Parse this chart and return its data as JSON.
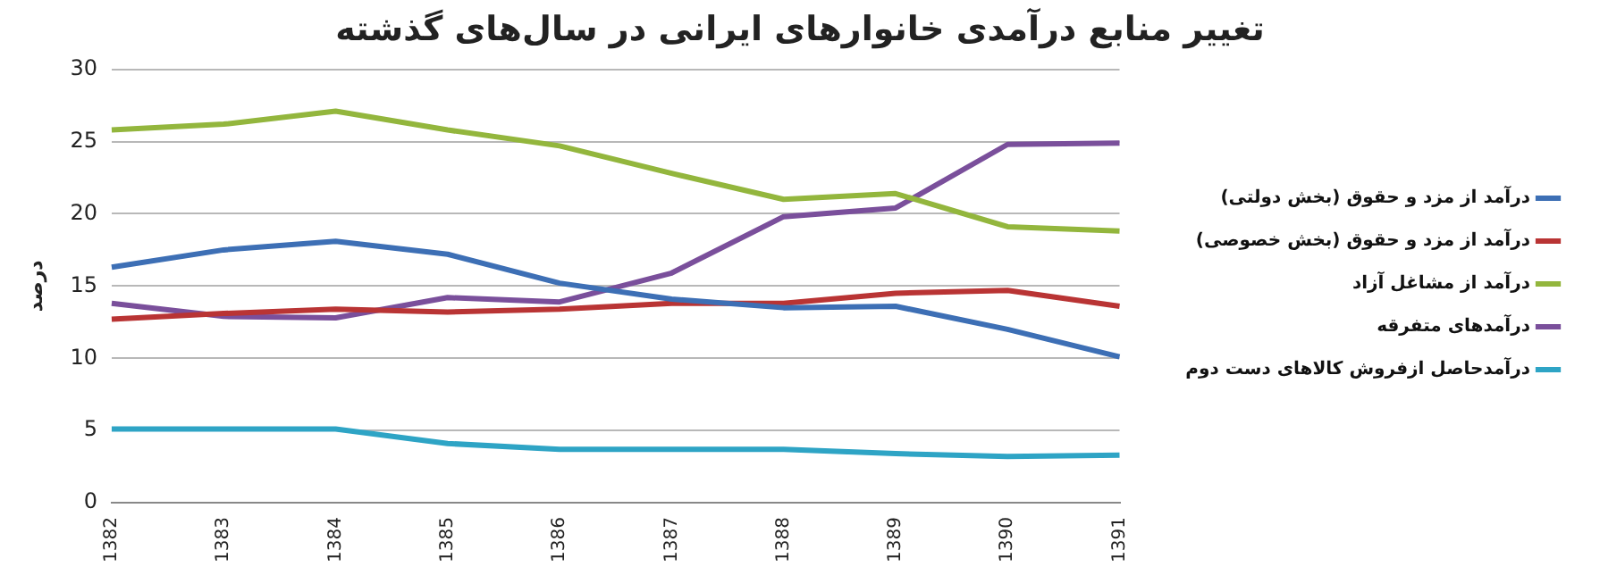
{
  "chart_data": {
    "type": "line",
    "title": "تغییر منابع درآمدی خانوارهای ایرانی در سال‌های گذشته",
    "ylabel": "درصد",
    "categories": [
      "1382",
      "1383",
      "1384",
      "1385",
      "1386",
      "1387",
      "1388",
      "1389",
      "1390",
      "1391"
    ],
    "series": [
      {
        "name": "درآمد از مزد و حقوق (بخش دولتی)",
        "color": "#3d6fb5",
        "values": [
          16.3,
          17.5,
          18.1,
          17.2,
          15.2,
          14.1,
          13.5,
          13.6,
          12.0,
          10.1
        ]
      },
      {
        "name": "درآمد از مزد و حقوق (بخش خصوصی)",
        "color": "#b93434",
        "values": [
          12.7,
          13.1,
          13.4,
          13.2,
          13.4,
          13.8,
          13.8,
          14.5,
          14.7,
          13.6
        ]
      },
      {
        "name": "درآمد از مشاغل آزاد",
        "color": "#93b63d",
        "values": [
          25.8,
          26.2,
          27.1,
          25.8,
          24.7,
          22.8,
          21.0,
          21.4,
          19.1,
          18.8
        ]
      },
      {
        "name": "درآمدهای متفرقه",
        "color": "#7a4f9b",
        "values": [
          13.8,
          12.9,
          12.8,
          14.2,
          13.9,
          15.9,
          19.8,
          20.4,
          24.8,
          24.9
        ]
      },
      {
        "name": "درآمدحاصل ازفروش کالاهای دست دوم",
        "color": "#2ea4c5",
        "values": [
          5.1,
          5.1,
          5.1,
          4.1,
          3.7,
          3.7,
          3.7,
          3.4,
          3.2,
          3.3
        ]
      }
    ],
    "ylim": [
      0,
      30
    ],
    "yticks": [
      0,
      5,
      10,
      15,
      20,
      25,
      30
    ],
    "grid": "y",
    "legend": "right",
    "marker": "none",
    "line_style": "solid"
  }
}
